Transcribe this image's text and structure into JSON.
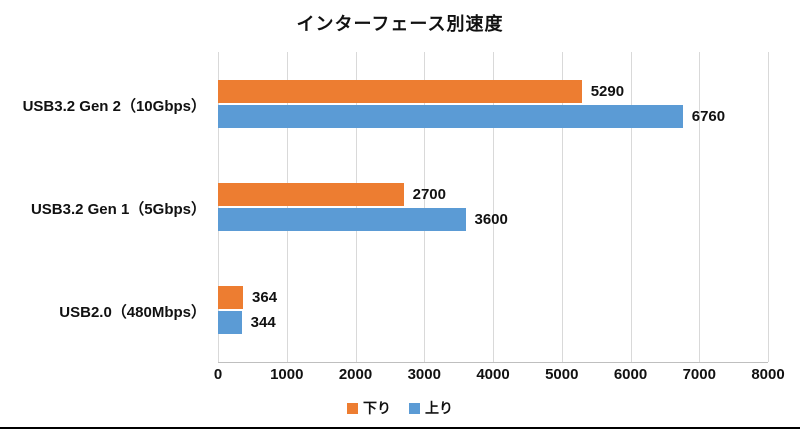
{
  "title": "インターフェース別速度",
  "chart_data": {
    "type": "bar",
    "orientation": "horizontal",
    "title": "インターフェース別速度",
    "categories": [
      "USB3.2 Gen 2（10Gbps）",
      "USB3.2 Gen 1（5Gbps）",
      "USB2.0（480Mbps）"
    ],
    "series": [
      {
        "name": "下り",
        "color": "#ED7D31",
        "values": [
          5290,
          2700,
          364
        ]
      },
      {
        "name": "上り",
        "color": "#5B9BD5",
        "values": [
          6760,
          3600,
          344
        ]
      }
    ],
    "xlim": [
      0,
      8000
    ],
    "x_ticks": [
      0,
      1000,
      2000,
      3000,
      4000,
      5000,
      6000,
      7000,
      8000
    ],
    "grid": true,
    "legend_position": "bottom",
    "colors": {
      "gridline": "#D9D9D9",
      "axis_line": "#BFBFBF",
      "text": "#111111"
    }
  }
}
